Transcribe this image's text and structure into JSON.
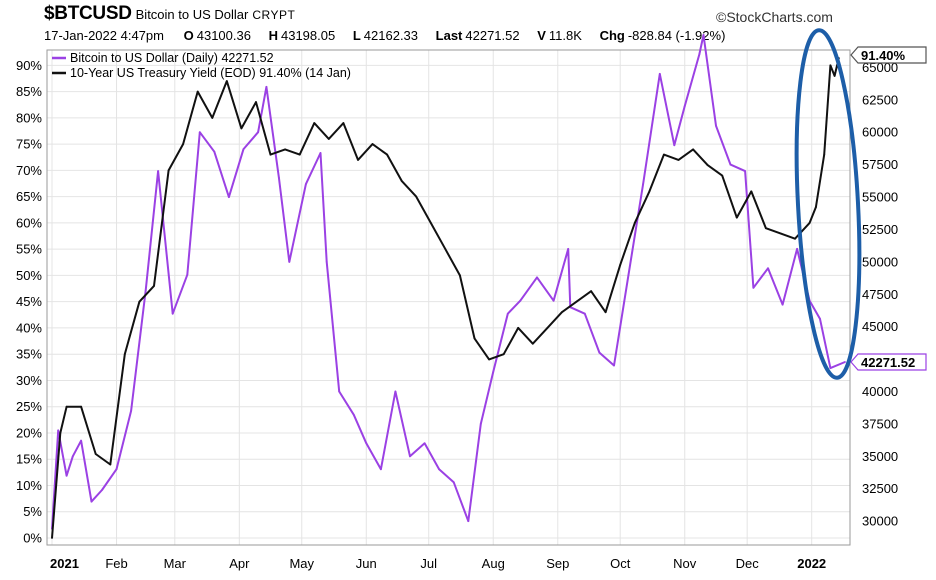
{
  "header": {
    "symbol": "$BTCUSD",
    "description": "Bitcoin to US Dollar",
    "exchange": "CRYPT",
    "credit": "StockCharts.com",
    "date": "17-Jan-2022 4:47pm",
    "open_label": "O",
    "open": "43100.36",
    "high_label": "H",
    "high": "43198.05",
    "low_label": "L",
    "low": "42162.33",
    "last_label": "Last",
    "last": "42271.52",
    "vol_label": "V",
    "vol": "11.8K",
    "chg_label": "Chg",
    "chg": "-828.84 (-1.92%)"
  },
  "colors": {
    "btc": "#9b41e4",
    "yield": "#111111",
    "highlight": "#1d5ea8"
  },
  "chart_data": {
    "type": "line",
    "x_labels": [
      "2021",
      "Feb",
      "Mar",
      "Apr",
      "May",
      "Jun",
      "Jul",
      "Aug",
      "Sep",
      "Oct",
      "Nov",
      "Dec",
      "2022"
    ],
    "left_axis": {
      "ticks": [
        "0%",
        "5%",
        "10%",
        "15%",
        "20%",
        "25%",
        "30%",
        "35%",
        "40%",
        "45%",
        "50%",
        "55%",
        "60%",
        "65%",
        "70%",
        "75%",
        "80%",
        "85%",
        "90%"
      ],
      "ylim": [
        0,
        91.4
      ]
    },
    "right_axis": {
      "ticks": [
        "30000",
        "32500",
        "35000",
        "37500",
        "40000",
        "42500",
        "45000",
        "47500",
        "50000",
        "52500",
        "55000",
        "57500",
        "60000",
        "62500",
        "65000"
      ],
      "ylim": [
        28000,
        66500
      ]
    },
    "grid": true,
    "legend_position": "top-left",
    "series": [
      {
        "name": "Bitcoin to US Dollar (Daily)",
        "legend_value": "42271.52",
        "axis": "right",
        "last_value_label": "42271.52",
        "x": [
          "2021-01-01",
          "2021-01-04",
          "2021-01-08",
          "2021-01-11",
          "2021-01-15",
          "2021-01-20",
          "2021-01-25",
          "2021-02-01",
          "2021-02-08",
          "2021-02-15",
          "2021-02-21",
          "2021-02-28",
          "2021-03-07",
          "2021-03-13",
          "2021-03-20",
          "2021-03-27",
          "2021-04-03",
          "2021-04-10",
          "2021-04-14",
          "2021-04-20",
          "2021-04-25",
          "2021-05-03",
          "2021-05-10",
          "2021-05-13",
          "2021-05-19",
          "2021-05-26",
          "2021-06-01",
          "2021-06-08",
          "2021-06-15",
          "2021-06-22",
          "2021-06-29",
          "2021-07-06",
          "2021-07-13",
          "2021-07-20",
          "2021-07-26",
          "2021-08-01",
          "2021-08-08",
          "2021-08-14",
          "2021-08-22",
          "2021-08-30",
          "2021-09-06",
          "2021-09-07",
          "2021-09-14",
          "2021-09-21",
          "2021-09-28",
          "2021-10-05",
          "2021-10-12",
          "2021-10-20",
          "2021-10-27",
          "2021-11-01",
          "2021-11-08",
          "2021-11-10",
          "2021-11-16",
          "2021-11-23",
          "2021-11-30",
          "2021-12-04",
          "2021-12-11",
          "2021-12-18",
          "2021-12-25",
          "2021-12-31",
          "2022-01-05",
          "2022-01-10",
          "2022-01-17"
        ],
        "y": [
          29400,
          37000,
          33500,
          35000,
          36200,
          31500,
          32400,
          34000,
          38500,
          47800,
          57000,
          46000,
          49000,
          60000,
          58500,
          55000,
          58700,
          60000,
          63500,
          56500,
          50000,
          56000,
          58400,
          50000,
          40000,
          38200,
          36000,
          34000,
          40000,
          35000,
          36000,
          34000,
          33000,
          30000,
          37500,
          41500,
          46000,
          47000,
          48800,
          47000,
          51000,
          46500,
          46000,
          43000,
          42000,
          49000,
          56000,
          64500,
          59000,
          62000,
          66000,
          67500,
          60500,
          57500,
          57000,
          48000,
          49500,
          46700,
          51000,
          47000,
          45600,
          41800,
          42271.52
        ]
      },
      {
        "name": "10-Year US Treasury Yield (EOD)",
        "legend_value": "91.40% (14 Jan)",
        "axis": "left",
        "last_value_label": "91.40%",
        "x": [
          "2021-01-01",
          "2021-01-05",
          "2021-01-08",
          "2021-01-15",
          "2021-01-22",
          "2021-01-29",
          "2021-02-05",
          "2021-02-12",
          "2021-02-19",
          "2021-02-26",
          "2021-03-05",
          "2021-03-12",
          "2021-03-19",
          "2021-03-26",
          "2021-04-02",
          "2021-04-09",
          "2021-04-16",
          "2021-04-23",
          "2021-04-30",
          "2021-05-07",
          "2021-05-14",
          "2021-05-21",
          "2021-05-28",
          "2021-06-04",
          "2021-06-11",
          "2021-06-18",
          "2021-06-25",
          "2021-07-02",
          "2021-07-09",
          "2021-07-16",
          "2021-07-23",
          "2021-07-30",
          "2021-08-06",
          "2021-08-13",
          "2021-08-20",
          "2021-08-27",
          "2021-09-03",
          "2021-09-10",
          "2021-09-17",
          "2021-09-24",
          "2021-10-01",
          "2021-10-08",
          "2021-10-15",
          "2021-10-22",
          "2021-10-29",
          "2021-11-05",
          "2021-11-12",
          "2021-11-19",
          "2021-11-26",
          "2021-12-03",
          "2021-12-10",
          "2021-12-17",
          "2021-12-24",
          "2021-12-31",
          "2022-01-03",
          "2022-01-07",
          "2022-01-10",
          "2022-01-12",
          "2022-01-14"
        ],
        "y": [
          0,
          20,
          25,
          25,
          16,
          14,
          35,
          45,
          48,
          70,
          75,
          85,
          80,
          87,
          78,
          83,
          73,
          74,
          73,
          79,
          76,
          79,
          72,
          75,
          73,
          68,
          65,
          60,
          55,
          50,
          38,
          34,
          35,
          40,
          37,
          40,
          43,
          45,
          47,
          43,
          52,
          60,
          66,
          73,
          72,
          74,
          71,
          69,
          61,
          66,
          59,
          58,
          57,
          60,
          63,
          73,
          90,
          88,
          91.4
        ]
      }
    ]
  }
}
